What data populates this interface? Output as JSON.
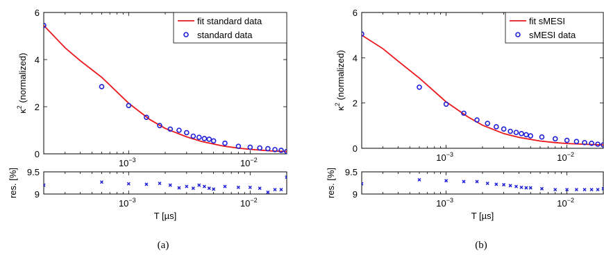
{
  "chart_data": [
    {
      "type": "line",
      "panel": "(a)",
      "xscale": "log",
      "xlim": [
        0.0002,
        0.02
      ],
      "xticks": [
        {
          "value": 0.001,
          "base": "10",
          "exp": "−3"
        },
        {
          "value": 0.01,
          "base": "10",
          "exp": "−2"
        }
      ],
      "main": {
        "ylabel": "κ",
        "ylabel_sup": "2",
        "ylabel_rest": " (normalized)",
        "ylim": [
          0,
          6
        ],
        "yticks": [
          "0",
          "2",
          "4",
          "6"
        ],
        "legend_position": "top-right",
        "series": [
          {
            "name": "fit standard data",
            "style": "line",
            "color": "#e8161b",
            "x": [
              0.0002,
              0.0003,
              0.0004,
              0.0006,
              0.001,
              0.0015,
              0.002,
              0.003,
              0.004,
              0.006,
              0.008,
              0.01,
              0.015,
              0.02
            ],
            "y": [
              5.45,
              4.5,
              3.95,
              3.25,
              2.15,
              1.45,
              1.08,
              0.72,
              0.52,
              0.33,
              0.24,
              0.19,
              0.12,
              0.1
            ]
          },
          {
            "name": "standard data",
            "style": "marker",
            "color": "#1f1fd8",
            "x": [
              0.0002,
              0.0006,
              0.001,
              0.0014,
              0.0018,
              0.0022,
              0.0026,
              0.003,
              0.0034,
              0.0038,
              0.0042,
              0.0046,
              0.005,
              0.0062,
              0.008,
              0.01,
              0.012,
              0.014,
              0.016,
              0.018,
              0.02
            ],
            "y": [
              5.45,
              2.85,
              2.05,
              1.55,
              1.2,
              1.05,
              1.0,
              0.9,
              0.75,
              0.7,
              0.65,
              0.62,
              0.55,
              0.45,
              0.32,
              0.28,
              0.25,
              0.22,
              0.18,
              0.15,
              0.1
            ]
          }
        ]
      },
      "residual": {
        "ylabel": "res. [%]",
        "ylim": [
          9,
          9.5
        ],
        "yticks": [
          "9",
          "9.5"
        ],
        "xlabel": "T [µs]",
        "series": [
          {
            "name": "",
            "style": "cross",
            "color": "#1f1fd8",
            "x": [
              0.0002,
              0.0006,
              0.001,
              0.0014,
              0.0018,
              0.0022,
              0.0026,
              0.003,
              0.0034,
              0.0038,
              0.0042,
              0.0046,
              0.005,
              0.0062,
              0.008,
              0.01,
              0.012,
              0.014,
              0.016,
              0.018,
              0.02
            ],
            "y": [
              9.2,
              9.27,
              9.23,
              9.22,
              9.24,
              9.2,
              9.14,
              9.17,
              9.13,
              9.2,
              9.17,
              9.13,
              9.11,
              9.17,
              9.15,
              9.15,
              9.13,
              9.04,
              9.1,
              9.1,
              9.38
            ]
          }
        ]
      }
    },
    {
      "type": "line",
      "panel": "(b)",
      "xscale": "log",
      "xlim": [
        0.0002,
        0.02
      ],
      "xticks": [
        {
          "value": 0.001,
          "base": "10",
          "exp": "−3"
        },
        {
          "value": 0.01,
          "base": "10",
          "exp": "−2"
        }
      ],
      "main": {
        "ylabel": "κ",
        "ylabel_sup": "2",
        "ylabel_rest": " (normalized)",
        "ylim": [
          0,
          6
        ],
        "yticks": [
          "0",
          "2",
          "4",
          "6"
        ],
        "legend_position": "top-right",
        "series": [
          {
            "name": "fit sMESI",
            "style": "line",
            "color": "#e8161b",
            "x": [
              0.0002,
              0.0003,
              0.0004,
              0.0006,
              0.001,
              0.0015,
              0.002,
              0.003,
              0.004,
              0.006,
              0.008,
              0.01,
              0.015,
              0.02
            ],
            "y": [
              5.0,
              4.4,
              3.85,
              3.1,
              2.05,
              1.4,
              1.02,
              0.65,
              0.48,
              0.32,
              0.25,
              0.21,
              0.17,
              0.15
            ]
          },
          {
            "name": "sMESI data",
            "style": "marker",
            "color": "#1f1fd8",
            "x": [
              0.0002,
              0.0006,
              0.001,
              0.0014,
              0.0018,
              0.0022,
              0.0026,
              0.003,
              0.0034,
              0.0038,
              0.0042,
              0.0046,
              0.005,
              0.0062,
              0.008,
              0.01,
              0.012,
              0.014,
              0.016,
              0.018,
              0.02
            ],
            "y": [
              5.05,
              2.7,
              1.95,
              1.55,
              1.25,
              1.1,
              0.95,
              0.85,
              0.75,
              0.7,
              0.65,
              0.6,
              0.55,
              0.5,
              0.42,
              0.35,
              0.3,
              0.25,
              0.22,
              0.18,
              0.15
            ]
          }
        ]
      },
      "residual": {
        "ylabel": "res. [%]",
        "ylim": [
          9,
          9.5
        ],
        "yticks": [
          "9",
          "9.5"
        ],
        "xlabel": "T [µs]",
        "series": [
          {
            "name": "",
            "style": "cross",
            "color": "#1f1fd8",
            "x": [
              0.0002,
              0.0006,
              0.001,
              0.0014,
              0.0018,
              0.0022,
              0.0026,
              0.003,
              0.0034,
              0.0038,
              0.0042,
              0.0046,
              0.005,
              0.0062,
              0.008,
              0.01,
              0.012,
              0.014,
              0.016,
              0.018,
              0.02
            ],
            "y": [
              9.23,
              9.32,
              9.3,
              9.28,
              9.28,
              9.24,
              9.22,
              9.21,
              9.19,
              9.17,
              9.15,
              9.14,
              9.14,
              9.12,
              9.1,
              9.1,
              9.1,
              9.1,
              9.1,
              9.1,
              9.12
            ]
          }
        ]
      }
    }
  ]
}
